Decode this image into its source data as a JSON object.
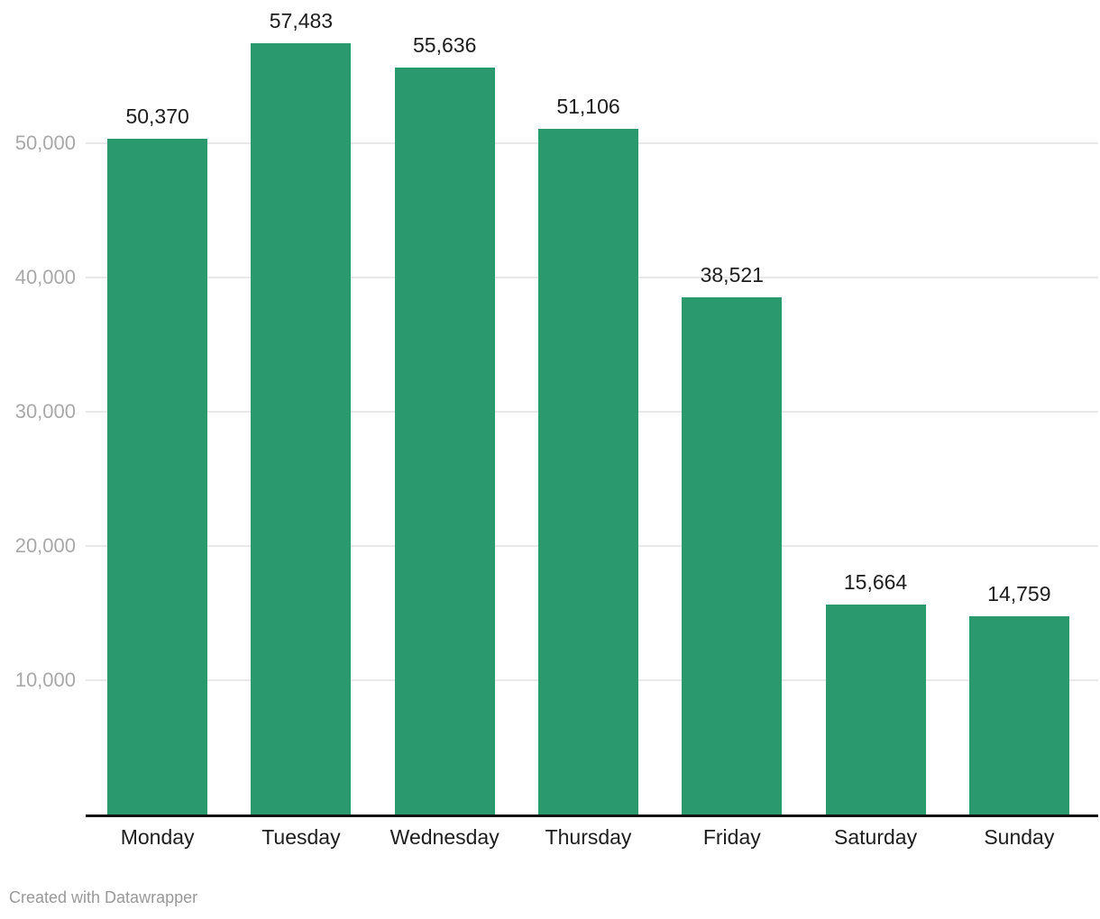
{
  "chart_data": {
    "type": "bar",
    "title": "",
    "xlabel": "",
    "ylabel": "",
    "categories": [
      "Monday",
      "Tuesday",
      "Wednesday",
      "Thursday",
      "Friday",
      "Saturday",
      "Sunday"
    ],
    "values": [
      50370,
      57483,
      55636,
      51106,
      38521,
      15664,
      14759
    ],
    "value_labels": [
      "50,370",
      "57,483",
      "55,636",
      "51,106",
      "38,521",
      "15,664",
      "14,759"
    ],
    "ylim": [
      0,
      60700
    ],
    "yticks": [
      {
        "value": 10000,
        "label": "10,000"
      },
      {
        "value": 20000,
        "label": "20,000"
      },
      {
        "value": 30000,
        "label": "30,000"
      },
      {
        "value": 40000,
        "label": "40,000"
      },
      {
        "value": 50000,
        "label": "50,000"
      }
    ],
    "grid": true,
    "legend": "none",
    "bar_color": "#2a9a6e"
  },
  "colors": {
    "bar": "#2a9a6e",
    "grid_line": "#e9e9e9",
    "tick_label": "#a8a8a8",
    "data_label": "#1d1d1d",
    "axis_line": "#141414",
    "footer_text": "#999999",
    "background": "#ffffff"
  },
  "footer": {
    "credit": "Created with Datawrapper"
  }
}
